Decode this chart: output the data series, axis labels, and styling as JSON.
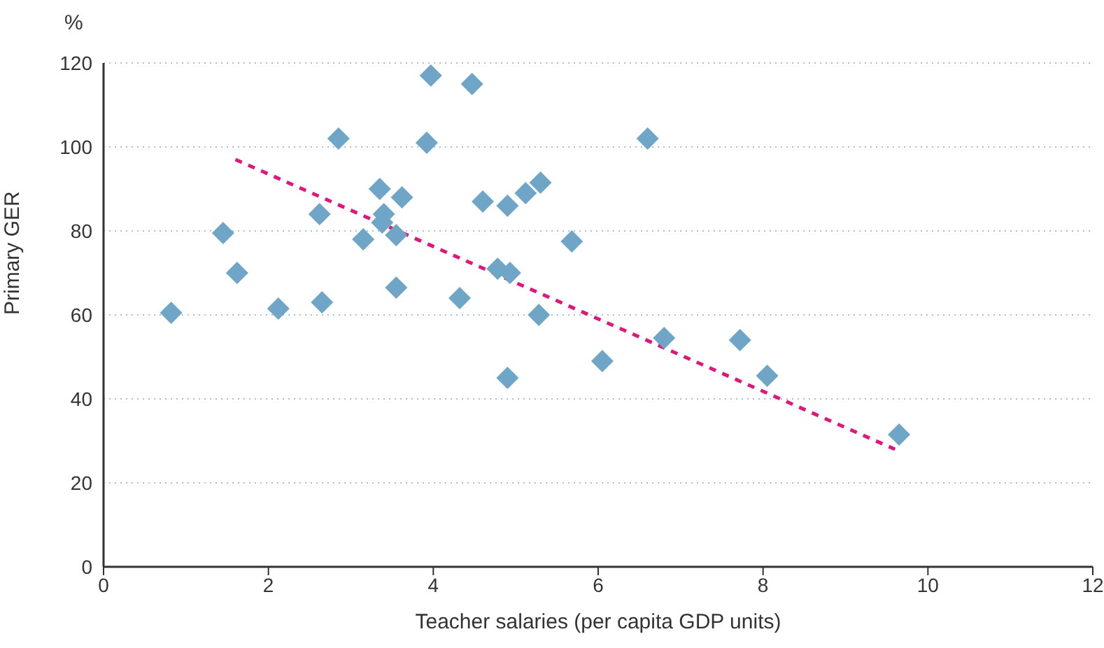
{
  "chart_data": {
    "type": "scatter",
    "xlabel": "Teacher salaries (per capita GDP units)",
    "ylabel": "Primary GER",
    "annotations": [
      "%"
    ],
    "xlim": [
      0,
      12
    ],
    "xticks": [
      0,
      2,
      4,
      6,
      8,
      10,
      12
    ],
    "ylim": [
      0,
      120
    ],
    "yticks": [
      0,
      20,
      40,
      60,
      80,
      100,
      120
    ],
    "grid": "y",
    "marker": "diamond",
    "series": [
      {
        "type": "scatter",
        "color": "#6fa5c7",
        "x": [
          0.82,
          1.45,
          1.62,
          2.12,
          2.62,
          2.65,
          2.85,
          3.15,
          3.35,
          3.4,
          3.38,
          3.55,
          3.55,
          3.62,
          3.92,
          3.97,
          4.32,
          4.47,
          4.6,
          4.78,
          4.93,
          4.9,
          4.9,
          5.12,
          5.28,
          5.3,
          5.68,
          6.05,
          6.6,
          6.8,
          7.72,
          8.05,
          9.65
        ],
        "values": [
          60.5,
          79.5,
          70,
          61.5,
          84,
          63,
          102,
          78,
          90,
          84,
          82,
          79,
          66.5,
          88,
          101,
          117,
          64,
          115,
          87,
          71,
          70,
          86,
          45,
          89,
          60,
          91.5,
          77.5,
          49,
          102,
          54.5,
          54,
          45.5,
          31.5
        ]
      },
      {
        "type": "line",
        "color": "#e0177a",
        "line_style": "dashed",
        "marker": "none",
        "x": [
          1.6,
          9.6
        ],
        "values": [
          97,
          28
        ]
      }
    ]
  }
}
